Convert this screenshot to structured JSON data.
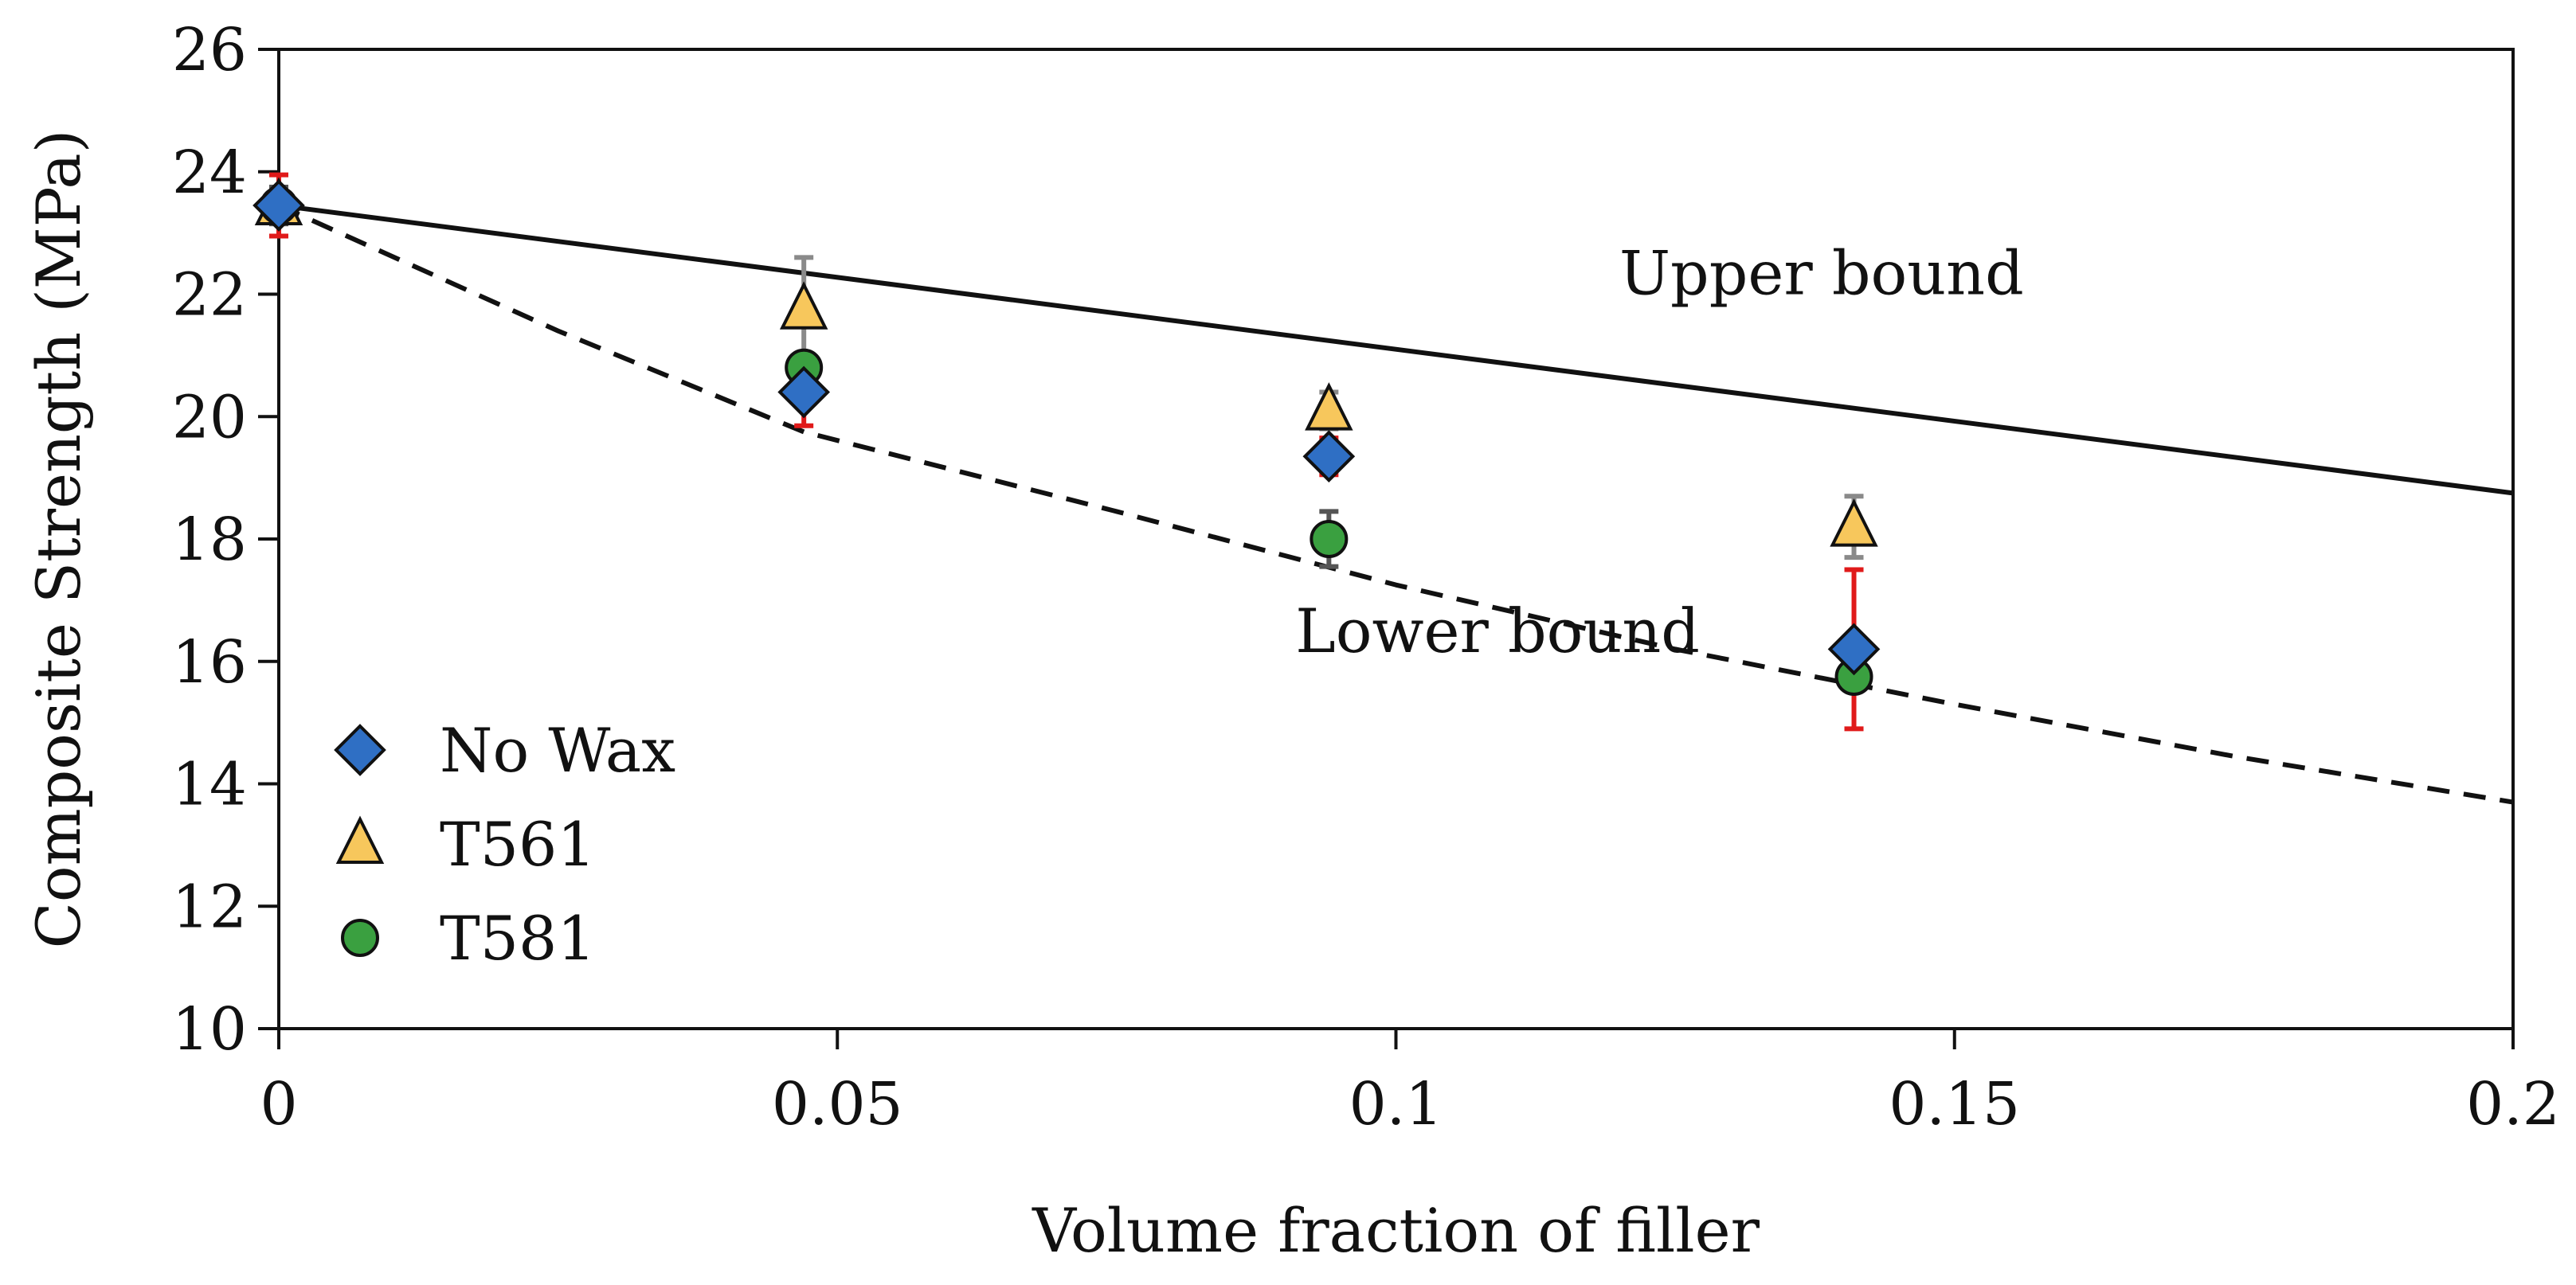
{
  "chart_data": {
    "type": "scatter",
    "title": "",
    "xlabel": "Volume fraction of filler",
    "ylabel": "Composite Strength (MPa)",
    "xlim": [
      0,
      0.2
    ],
    "ylim": [
      10,
      26
    ],
    "xticks": [
      0,
      0.05,
      0.1,
      0.15,
      0.2
    ],
    "xtick_labels": [
      "0",
      "0.05",
      "0.1",
      "0.15",
      "0.2"
    ],
    "yticks": [
      10,
      12,
      14,
      16,
      18,
      20,
      22,
      24,
      26
    ],
    "ytick_labels": [
      "10",
      "12",
      "14",
      "16",
      "18",
      "20",
      "22",
      "24",
      "26"
    ],
    "grid": false,
    "legend_position": "bottom-left",
    "series": [
      {
        "name": "No Wax",
        "marker": "diamond",
        "color": "#2f6fc4",
        "error_color": "#e01a1a",
        "x": [
          0,
          0.047,
          0.094,
          0.141
        ],
        "y": [
          23.45,
          20.4,
          19.35,
          16.2
        ],
        "yerr": [
          0.5,
          0.55,
          0.3,
          1.3
        ]
      },
      {
        "name": "T561",
        "marker": "triangle",
        "color": "#f7c75c",
        "error_color": "#8a8a8a",
        "x": [
          0,
          0.047,
          0.094,
          0.141
        ],
        "y": [
          23.45,
          21.75,
          20.1,
          18.2
        ],
        "yerr": [
          0.3,
          0.85,
          0.3,
          0.5
        ]
      },
      {
        "name": "T581",
        "marker": "circle",
        "color": "#3aa040",
        "error_color": "#555555",
        "x": [
          0,
          0.047,
          0.094,
          0.141
        ],
        "y": [
          23.45,
          20.8,
          18.0,
          15.75
        ],
        "yerr": [
          0.3,
          0.2,
          0.45,
          0.2
        ]
      }
    ],
    "bounds": [
      {
        "name": "Upper bound",
        "style": "solid",
        "x": [
          0,
          0.2
        ],
        "y": [
          23.45,
          18.75
        ]
      },
      {
        "name": "Lower bound",
        "style": "dashed",
        "x": [
          0,
          0.025,
          0.047,
          0.075,
          0.1,
          0.125,
          0.15,
          0.175,
          0.2
        ],
        "y": [
          23.45,
          21.4,
          19.75,
          18.45,
          17.25,
          16.2,
          15.3,
          14.45,
          13.7
        ]
      }
    ],
    "annotations": [
      {
        "text": "Upper bound",
        "x": 0.12,
        "y": 22.0
      },
      {
        "text": "Lower bound",
        "x": 0.091,
        "y": 16.15
      }
    ]
  }
}
